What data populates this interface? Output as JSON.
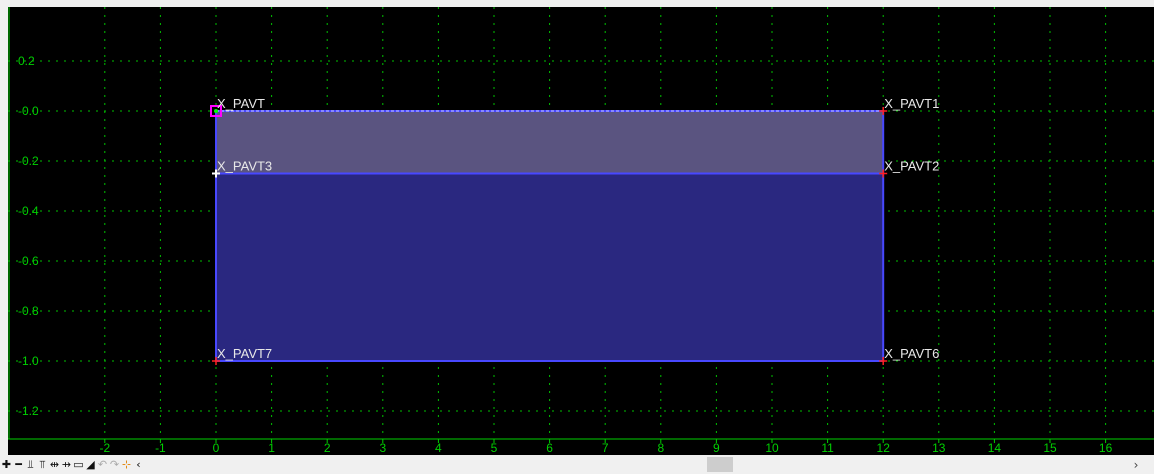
{
  "canvas": {
    "colors": {
      "background": "#000000",
      "grid": "#00c000",
      "axis": "#00d000",
      "upper_layer_fill": "#5a5480",
      "lower_layer_fill": "#2a2880",
      "outline": "#4848ff",
      "point_marker": "#ff2020",
      "selected_marker": "#ff00ff"
    },
    "y_ticks": [
      "0.2",
      "-0.0",
      "-0.2",
      "-0.4",
      "-0.6",
      "-0.8",
      "-1.0",
      "-1.2"
    ],
    "x_ticks": [
      "-2",
      "-1",
      "0",
      "1",
      "2",
      "3",
      "4",
      "5",
      "6",
      "7",
      "8",
      "9",
      "10",
      "11",
      "12",
      "13",
      "14",
      "15",
      "16"
    ],
    "points": [
      {
        "name": "X_PAVT",
        "x": 0,
        "y": 0.0,
        "selected": true
      },
      {
        "name": "X_PAVT1",
        "x": 12,
        "y": 0.0
      },
      {
        "name": "X_PAVT3",
        "x": 0,
        "y": -0.25
      },
      {
        "name": "X_PAVT2",
        "x": 12,
        "y": -0.25
      },
      {
        "name": "X_PAVT7",
        "x": 0,
        "y": -1.0
      },
      {
        "name": "X_PAVT6",
        "x": 12,
        "y": -1.0
      }
    ],
    "components": [
      {
        "name": "upper-layer",
        "x0": 0,
        "x1": 12,
        "y_top": 0.0,
        "y_bottom": -0.25
      },
      {
        "name": "lower-layer",
        "x0": 0,
        "x1": 12,
        "y_top": -0.25,
        "y_bottom": -1.0
      }
    ]
  },
  "toolbar": {
    "buttons": [
      {
        "icon": "add-point-icon",
        "glyph": "✚"
      },
      {
        "icon": "remove-point-icon",
        "glyph": "━"
      },
      {
        "icon": "align-top-icon",
        "glyph": "⫫"
      },
      {
        "icon": "align-bottom-icon",
        "glyph": "⫪"
      },
      {
        "icon": "move-left-icon",
        "glyph": "⇹"
      },
      {
        "icon": "move-right-icon",
        "glyph": "⇸"
      },
      {
        "icon": "rectangle-icon",
        "glyph": "▭"
      },
      {
        "icon": "mountain-icon",
        "glyph": "◢"
      },
      {
        "icon": "undo-icon",
        "glyph": "↶"
      },
      {
        "icon": "redo-icon",
        "glyph": "↷"
      },
      {
        "icon": "snap-point-icon",
        "glyph": "⊹"
      },
      {
        "icon": "scroll-left-icon",
        "glyph": "‹"
      }
    ],
    "scroll_right_glyph": "›"
  }
}
